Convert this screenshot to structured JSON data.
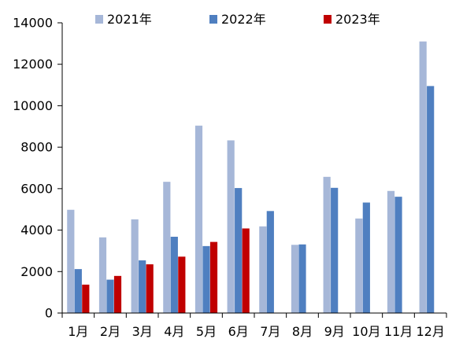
{
  "chart_data": {
    "type": "bar",
    "categories": [
      "1月",
      "2月",
      "3月",
      "4月",
      "5月",
      "6月",
      "7月",
      "8月",
      "9月",
      "10月",
      "11月",
      "12月"
    ],
    "series": [
      {
        "name": "2021年",
        "color": "#A6B7D8",
        "values": [
          4980,
          3650,
          4520,
          6330,
          9040,
          8330,
          4180,
          3290,
          6570,
          4560,
          5890,
          13100
        ]
      },
      {
        "name": "2022年",
        "color": "#4F7FC0",
        "values": [
          2120,
          1610,
          2540,
          3680,
          3230,
          6030,
          4920,
          3310,
          6040,
          5330,
          5610,
          10950
        ]
      },
      {
        "name": "2023年",
        "color": "#C00000",
        "values": [
          1370,
          1790,
          2350,
          2720,
          3430,
          4080,
          null,
          null,
          null,
          null,
          null,
          null
        ]
      }
    ],
    "y_ticks": [
      0,
      2000,
      4000,
      6000,
      8000,
      10000,
      12000,
      14000
    ],
    "ylim": [
      0,
      14000
    ],
    "grid": false,
    "legend_position": "top"
  }
}
